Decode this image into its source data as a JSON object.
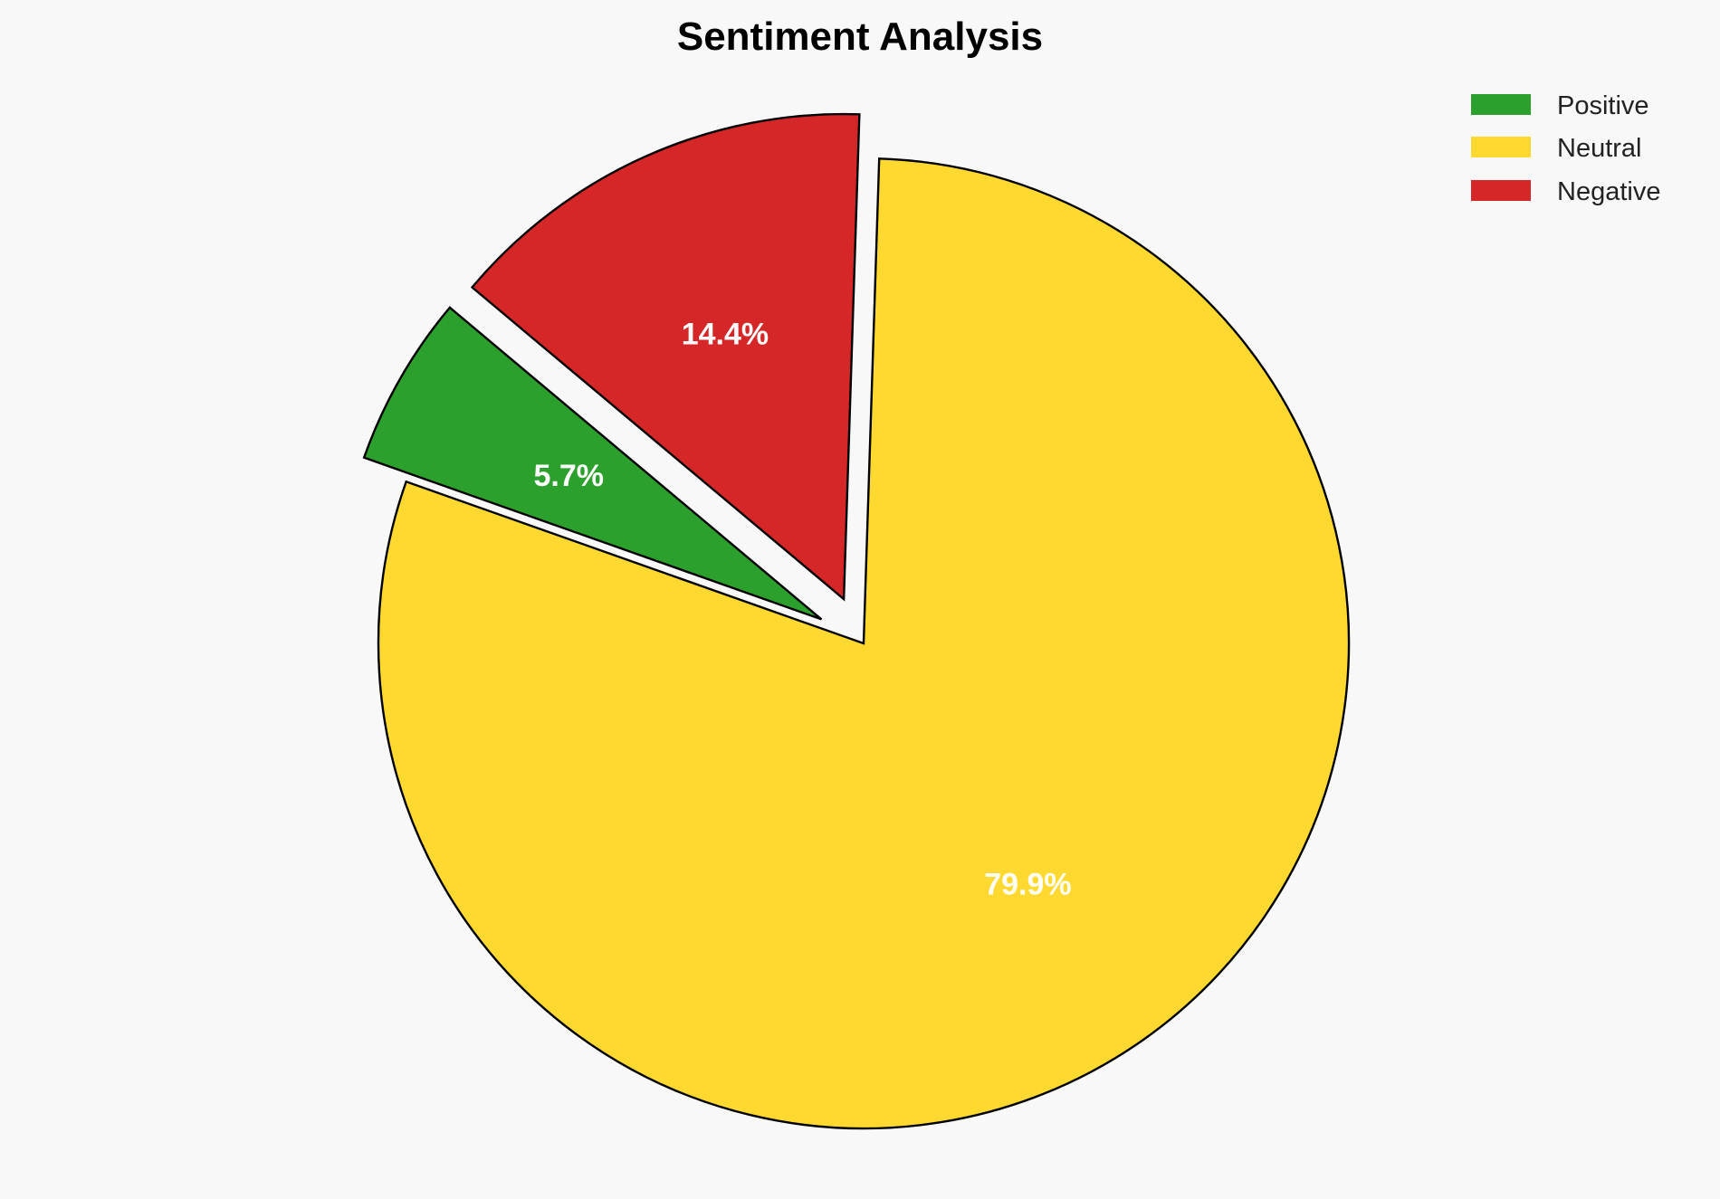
{
  "chart_data": {
    "type": "pie",
    "title": "Sentiment Analysis",
    "categories": [
      "Positive",
      "Neutral",
      "Negative"
    ],
    "values": [
      5.7,
      79.9,
      14.4
    ],
    "labels": [
      "5.7%",
      "79.9%",
      "14.4%"
    ],
    "colors": [
      "#2ca02c",
      "#ffd92f",
      "#d62728"
    ],
    "explode": [
      0.1,
      0,
      0.1
    ],
    "start_angle": 140,
    "direction": "counterclockwise",
    "edge_color": "#000000",
    "legend_position": "top-right",
    "background": "#f8f8f8"
  }
}
